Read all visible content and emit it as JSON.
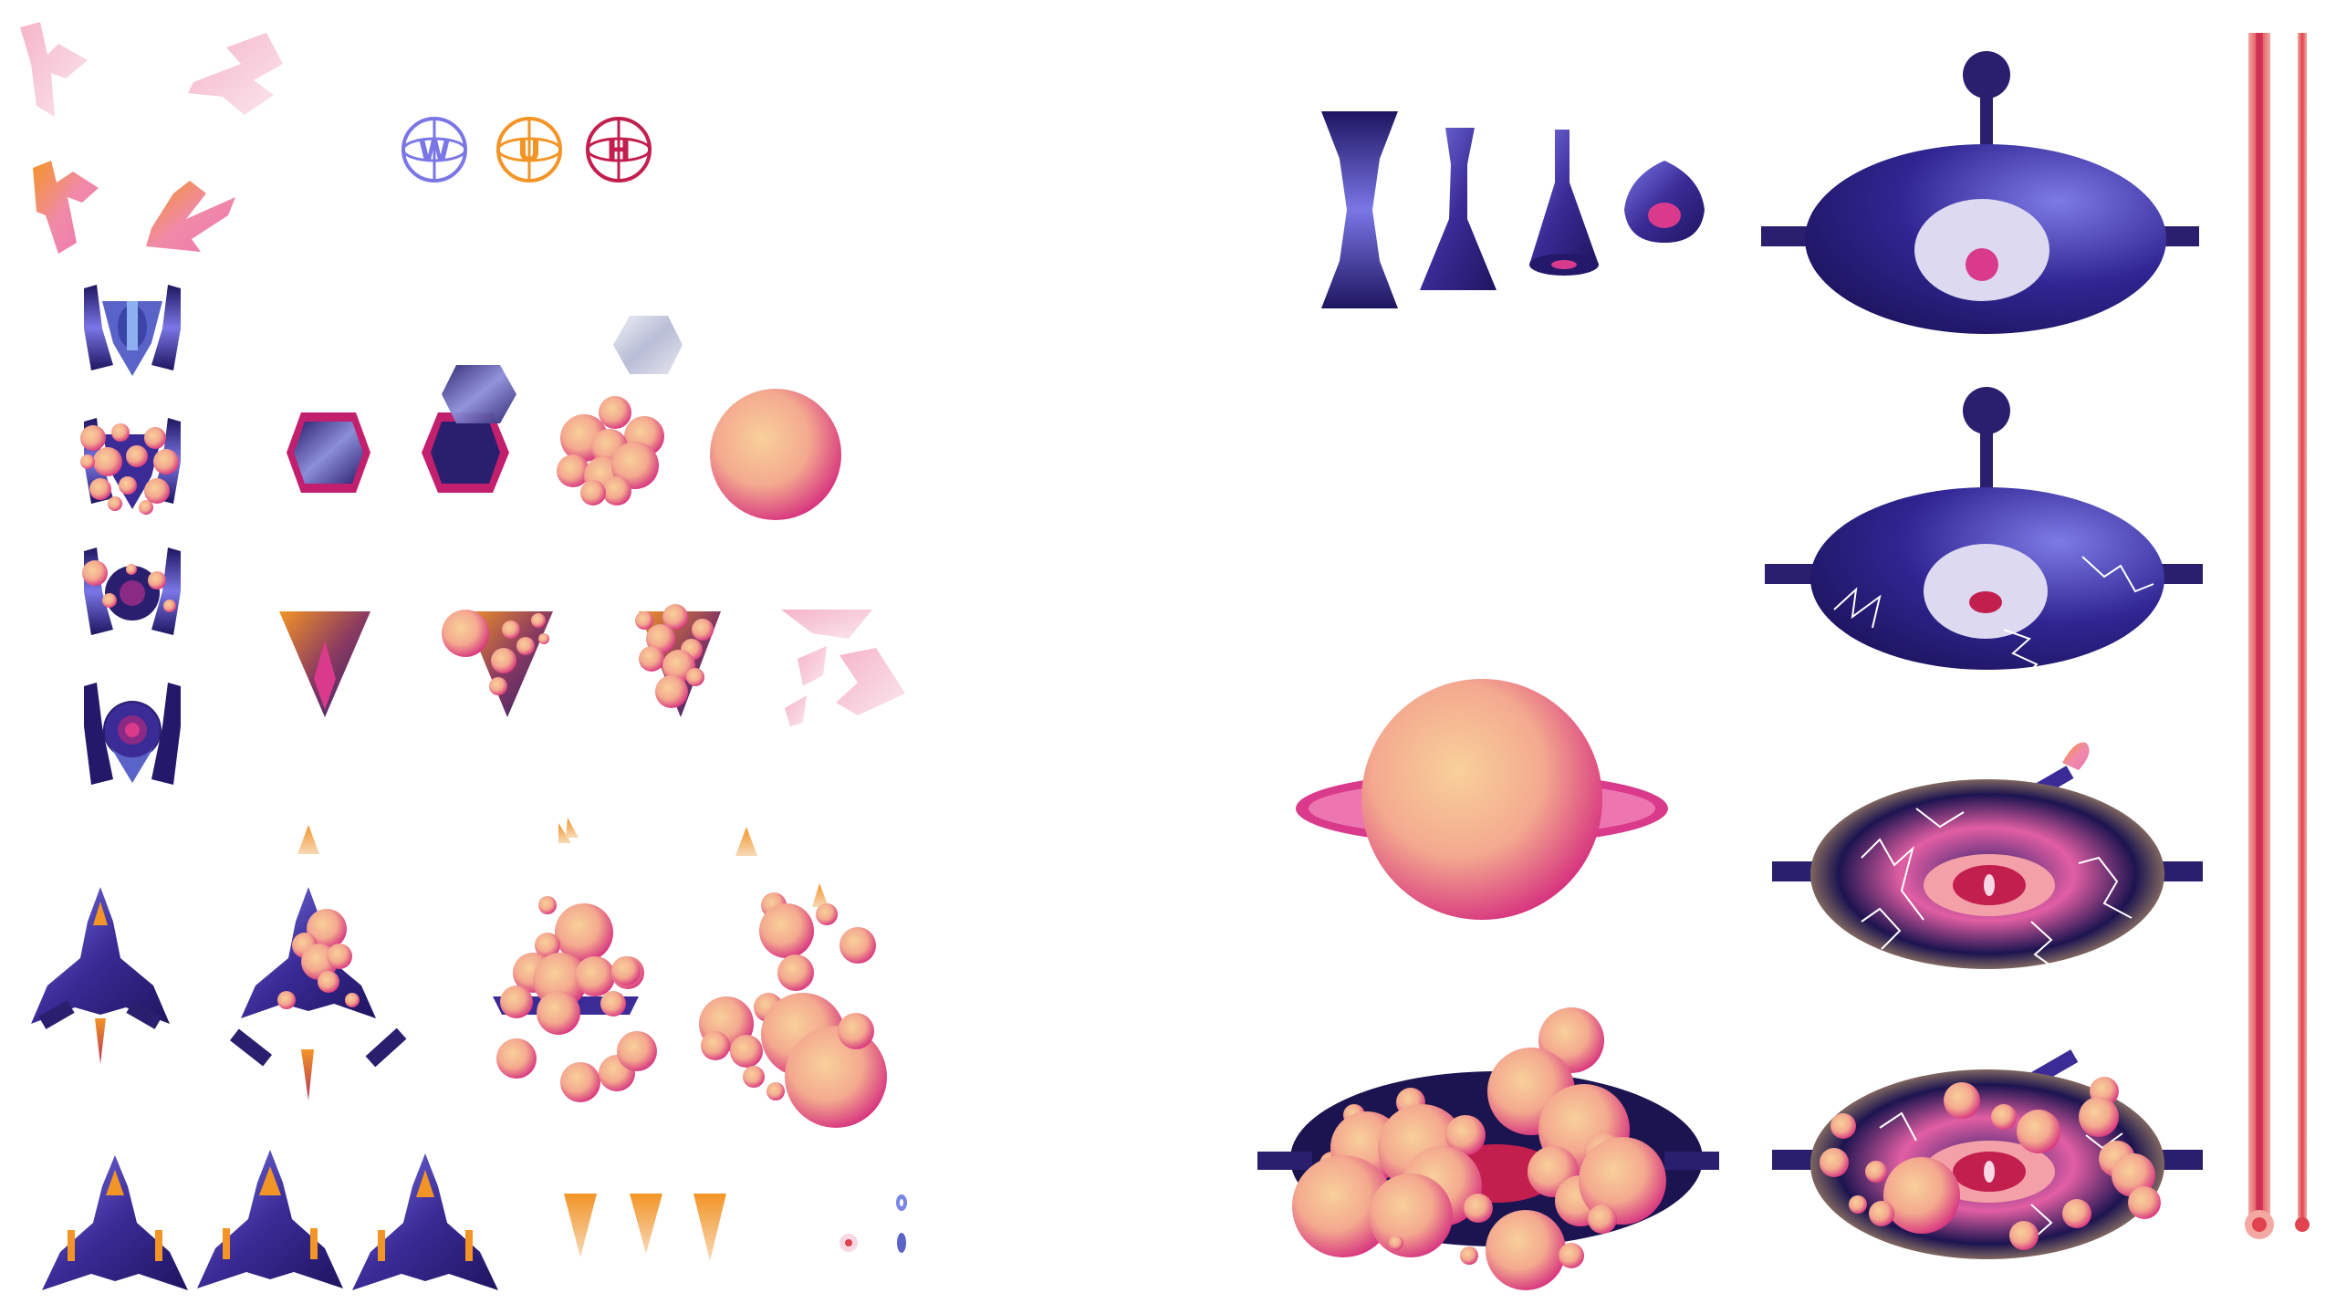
{
  "sheet": {
    "kind": "sprite-sheet",
    "background": "#ffffff"
  },
  "palette": {
    "navy": "#23186a",
    "indigo": "#3a2b96",
    "violet": "#7a76e6",
    "magenta": "#d93a8c",
    "pink": "#ee76b0",
    "peach": "#f6c58e",
    "orange": "#f39426",
    "crimson": "#c21f4e",
    "laser_red": "#e0424f",
    "pale_pink": "#f2c2d6"
  },
  "powerups": [
    {
      "letter": "W",
      "color": "#7a76e6"
    },
    {
      "letter": "U",
      "color": "#f39426"
    },
    {
      "letter": "H",
      "color": "#c21f4e"
    }
  ],
  "icons": {
    "letter_fragments": "k-letter-fragment-icon",
    "player_ship": "player-ship-icon",
    "enemy_fighter": "enemy-fighter-icon",
    "hex_mine": "hex-mine-icon",
    "dart_enemy": "dart-enemy-icon",
    "explosion": "explosion-icon",
    "boss_saucer": "boss-saucer-icon",
    "planet": "ringed-planet-icon",
    "laser_beam": "laser-beam-icon",
    "thruster_flame": "thruster-flame-icon"
  }
}
